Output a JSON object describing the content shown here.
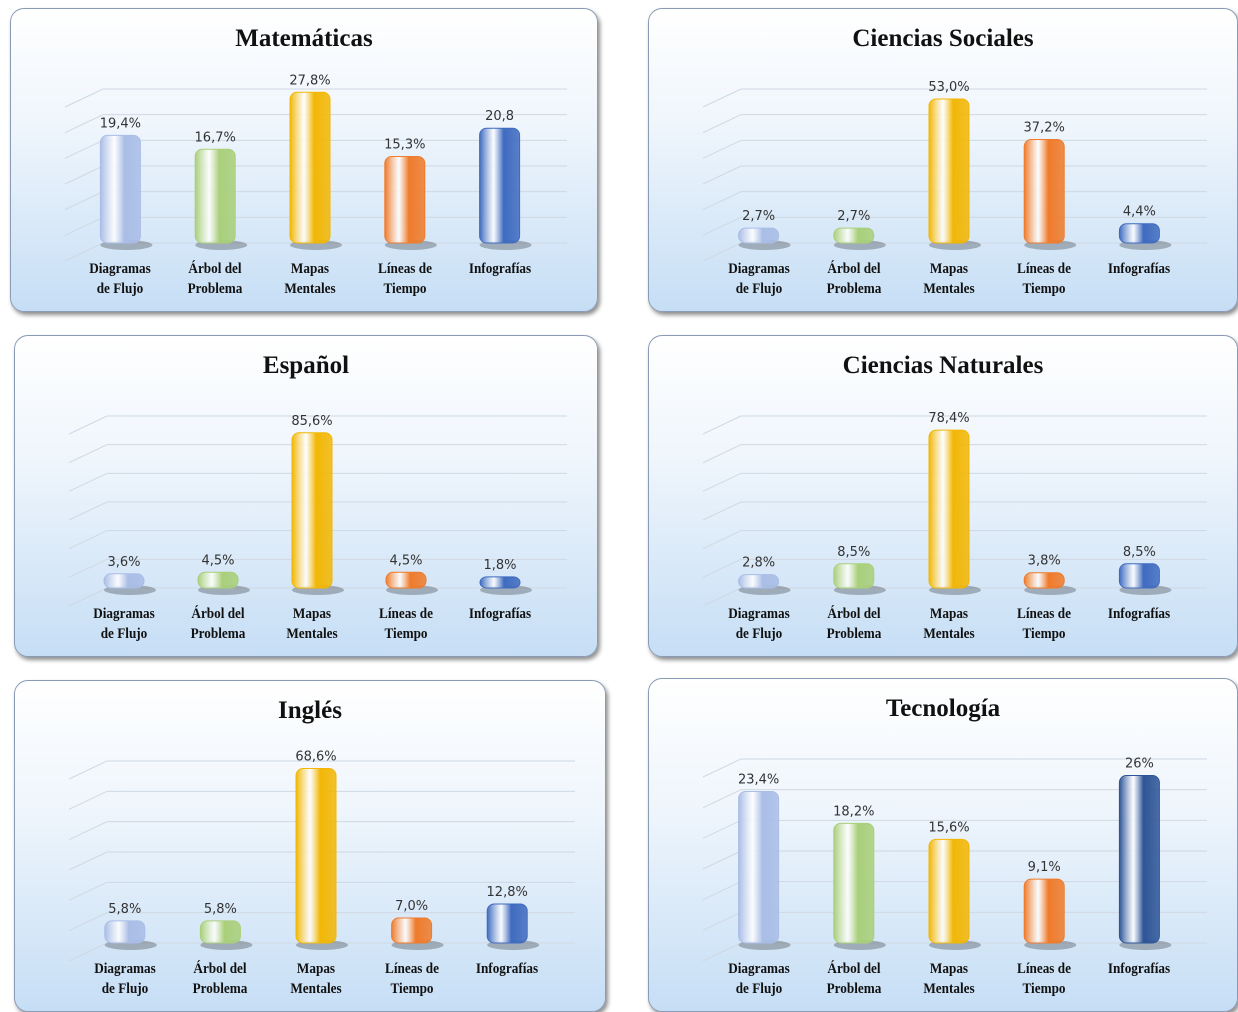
{
  "chart_data": [
    {
      "type": "bar",
      "title": "Matemáticas",
      "categories": [
        "Diagramas de Flujo",
        "Árbol del Problema",
        "Mapas Mentales",
        "Líneas de Tiempo",
        "Infografías"
      ],
      "values": [
        19.4,
        16.7,
        27.8,
        15.3,
        20.8
      ],
      "value_labels": [
        "19,4%",
        "16,7%",
        "27,8%",
        "15,3%",
        "20,8"
      ],
      "colors": [
        "#a9bde6",
        "#a9cf7a",
        "#f2b705",
        "#ef7b2b",
        "#3f6bbf"
      ],
      "ylim": [
        0,
        30
      ]
    },
    {
      "type": "bar",
      "title": "Ciencias Sociales",
      "categories": [
        "Diagramas de Flujo",
        "Árbol del Problema",
        "Mapas Mentales",
        "Líneas de Tiempo",
        "Infografías"
      ],
      "values": [
        2.7,
        2.7,
        53.0,
        37.2,
        4.4
      ],
      "value_labels": [
        "2,7%",
        "2,7%",
        "53,0%",
        "37,2%",
        "4,4%"
      ],
      "colors": [
        "#a9bde6",
        "#a9cf7a",
        "#f2b705",
        "#ef7b2b",
        "#3f6bbf"
      ],
      "ylim": [
        0,
        60
      ]
    },
    {
      "type": "bar",
      "title": "Español",
      "categories": [
        "Diagramas de Flujo",
        "Árbol del Problema",
        "Mapas Mentales",
        "Líneas de Tiempo",
        "Infografías"
      ],
      "values": [
        3.6,
        4.5,
        85.6,
        4.5,
        1.8
      ],
      "value_labels": [
        "3,6%",
        "4,5%",
        "85,6%",
        "4,5%",
        "1,8%"
      ],
      "colors": [
        "#a9bde6",
        "#a9cf7a",
        "#f2b705",
        "#ef7b2b",
        "#3f6bbf"
      ],
      "ylim": [
        0,
        100
      ]
    },
    {
      "type": "bar",
      "title": "Ciencias Naturales",
      "categories": [
        "Diagramas de Flujo",
        "Árbol del Problema",
        "Mapas Mentales",
        "Líneas de Tiempo",
        "Infografías"
      ],
      "values": [
        2.8,
        8.5,
        78.4,
        3.8,
        8.5
      ],
      "value_labels": [
        "2,8%",
        "8,5%",
        "78,4%",
        "3,8%",
        "8,5%"
      ],
      "colors": [
        "#a9bde6",
        "#a9cf7a",
        "#f2b705",
        "#ef7b2b",
        "#3f6bbf"
      ],
      "ylim": [
        0,
        90
      ]
    },
    {
      "type": "bar",
      "title": "Inglés",
      "categories": [
        "Diagramas de Flujo",
        "Árbol del Problema",
        "Mapas Mentales",
        "Líneas de Tiempo",
        "Infografías"
      ],
      "values": [
        5.8,
        5.8,
        68.6,
        7.0,
        12.8
      ],
      "value_labels": [
        "5,8%",
        "5,8%",
        "68,6%",
        "7,0%",
        "12,8%"
      ],
      "colors": [
        "#a9bde6",
        "#a9cf7a",
        "#f2b705",
        "#ef7b2b",
        "#3f6bbf"
      ],
      "ylim": [
        0,
        75
      ]
    },
    {
      "type": "bar",
      "title": "Tecnología",
      "categories": [
        "Diagramas de Flujo",
        "Árbol del Problema",
        "Mapas Mentales",
        "Líneas de Tiempo",
        "Infografías"
      ],
      "values": [
        23.4,
        18.2,
        15.6,
        9.1,
        26
      ],
      "value_labels": [
        "23,4%",
        "18,2%",
        "15,6%",
        "9,1%",
        "26%"
      ],
      "colors": [
        "#a9bde6",
        "#a9cf7a",
        "#f2b705",
        "#ef7b2b",
        "#2e5597"
      ],
      "ylim": [
        0,
        30
      ]
    }
  ]
}
